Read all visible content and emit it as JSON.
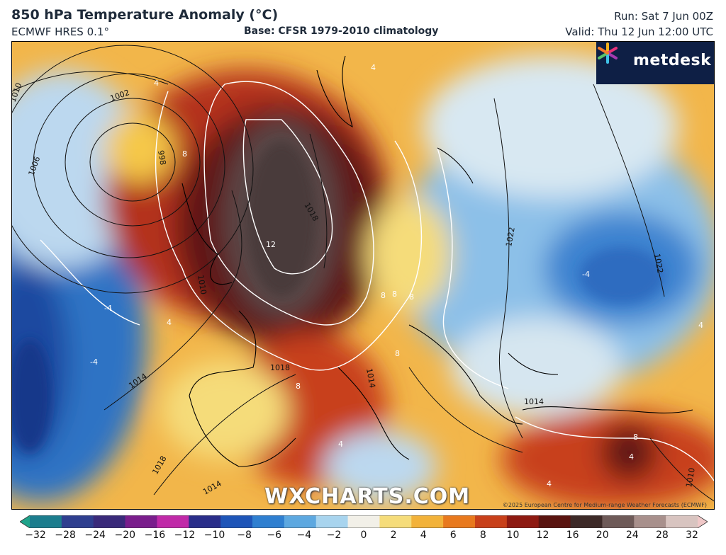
{
  "header": {
    "title": "850 hPa Temperature Anomaly (°C)",
    "subtitle": "ECMWF HRES 0.1°",
    "base": "Base: CFSR 1979-2010 climatology",
    "run": "Run: Sat 7 Jun 00Z",
    "valid": "Valid: Thu 12 Jun 12:00 UTC"
  },
  "logo": {
    "text": "metdesk",
    "icon": "metdesk-star-icon"
  },
  "watermark": "WXCHARTS.COM",
  "copyright": "©2025 European Centre for Medium-range Weather Forecasts (ECMWF)",
  "map": {
    "isobar_labels": [
      "1010",
      "1002",
      "998",
      "1006",
      "1010",
      "1018",
      "1014",
      "1018",
      "1014",
      "1018",
      "1014",
      "1014",
      "1022",
      "1022",
      "1010"
    ],
    "anomaly_labels": [
      "4",
      "8",
      "12",
      "8",
      "-4",
      "4",
      "-4",
      "4",
      "8",
      "8",
      "8",
      "4",
      "8",
      "4",
      "4",
      "-4",
      "4",
      "8"
    ]
  },
  "colorbar": {
    "ticks": [
      "−32",
      "−28",
      "−24",
      "−20",
      "−16",
      "−12",
      "−10",
      "−8",
      "−6",
      "−4",
      "−2",
      "0",
      "2",
      "4",
      "6",
      "8",
      "10",
      "12",
      "16",
      "20",
      "24",
      "28",
      "32"
    ],
    "colors": [
      "#1fa38a",
      "#1c7d8e",
      "#2f3f8f",
      "#3a2a7a",
      "#7a1e8c",
      "#c02aa8",
      "#2a2e8a",
      "#1e55b8",
      "#2f7fd0",
      "#5da8e0",
      "#a8d4ee",
      "#f2f0e8",
      "#f5dc7a",
      "#f2b23a",
      "#e8791e",
      "#c8401a",
      "#8e1a12",
      "#5a1410",
      "#3d2a28",
      "#6e5a58",
      "#a8908c",
      "#d8c4c0",
      "#f0c8c8"
    ]
  }
}
